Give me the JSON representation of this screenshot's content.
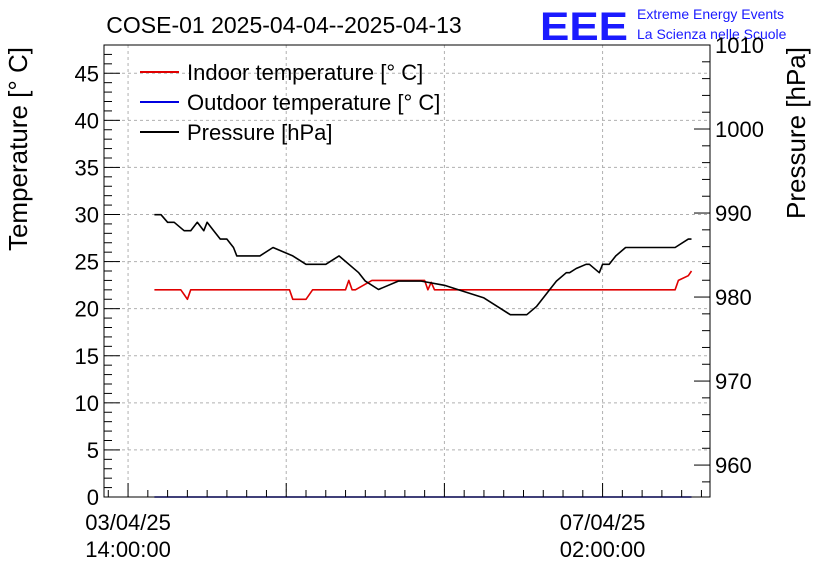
{
  "chart_data": {
    "type": "line",
    "title": "COSE-01 2025-04-04--2025-04-13",
    "logo": {
      "mark": "EEE",
      "line1": "Extreme Energy Events",
      "line2": "La Scienza nelle Scuole",
      "color": "#1a1aff"
    },
    "ylabel": "Temperature [° C]",
    "y2label": "Pressure [hPa]",
    "ylim": [
      0,
      48
    ],
    "y2lim": [
      956.2,
      1010
    ],
    "yticks": [
      "0",
      "5",
      "10",
      "15",
      "20",
      "25",
      "30",
      "35",
      "40",
      "45"
    ],
    "y2ticks": [
      "960",
      "970",
      "980",
      "990",
      "1000",
      "1010"
    ],
    "xlim": [
      -7.3,
      176.6
    ],
    "xticks": [
      {
        "x": 0,
        "date": "03/04/25",
        "time": "14:00:00"
      },
      {
        "x": 48,
        "date": "",
        "time": ""
      },
      {
        "x": 96,
        "date": "",
        "time": ""
      },
      {
        "x": 144,
        "date": "07/04/25",
        "time": "02:00:00"
      }
    ],
    "grid": true,
    "legend_position": "top-left",
    "series": [
      {
        "name": "Indoor temperature [° C]",
        "axis": "left",
        "color": "#e00000",
        "x": [
          8,
          16,
          17,
          18,
          19,
          30,
          49,
          50,
          54,
          56,
          60,
          66,
          67,
          68,
          69,
          74,
          90,
          91,
          92,
          93,
          166,
          167,
          170,
          171
        ],
        "y": [
          22,
          22,
          21.5,
          21,
          22,
          22,
          22,
          21,
          21,
          22,
          22,
          22,
          23,
          22,
          22,
          23,
          23,
          22,
          22.8,
          22,
          22,
          23,
          23.5,
          24
        ]
      },
      {
        "name": "Outdoor temperature [° C]",
        "axis": "left",
        "color": "#0000e0",
        "x": [
          8,
          171
        ],
        "y": [
          0,
          0
        ]
      },
      {
        "name": "Pressure [hPa]",
        "axis": "right",
        "color": "#000000",
        "x": [
          8,
          10,
          12,
          14,
          17,
          19,
          21,
          23,
          24,
          26,
          28,
          30,
          32,
          33,
          35,
          37,
          40,
          44,
          50,
          54,
          60,
          64,
          70,
          72,
          76,
          82,
          86,
          89,
          96,
          100,
          108,
          112,
          116,
          121,
          124,
          128,
          130,
          133,
          134,
          136,
          139,
          140,
          143,
          144,
          146,
          148,
          151,
          152,
          156,
          160,
          166,
          170,
          171
        ],
        "y": [
          989.8,
          989.8,
          988.9,
          988.9,
          987.9,
          987.9,
          988.9,
          987.9,
          988.9,
          987.9,
          986.9,
          986.9,
          985.9,
          984.9,
          984.9,
          984.9,
          984.9,
          985.9,
          984.9,
          983.9,
          983.9,
          984.9,
          982.9,
          981.9,
          980.9,
          981.9,
          981.9,
          981.9,
          981.4,
          980.9,
          979.9,
          978.9,
          977.9,
          977.9,
          978.9,
          980.9,
          981.9,
          982.9,
          982.9,
          983.4,
          983.9,
          983.9,
          982.9,
          983.9,
          983.9,
          984.9,
          985.9,
          985.9,
          985.9,
          985.9,
          985.9,
          986.9,
          986.9
        ]
      }
    ]
  }
}
